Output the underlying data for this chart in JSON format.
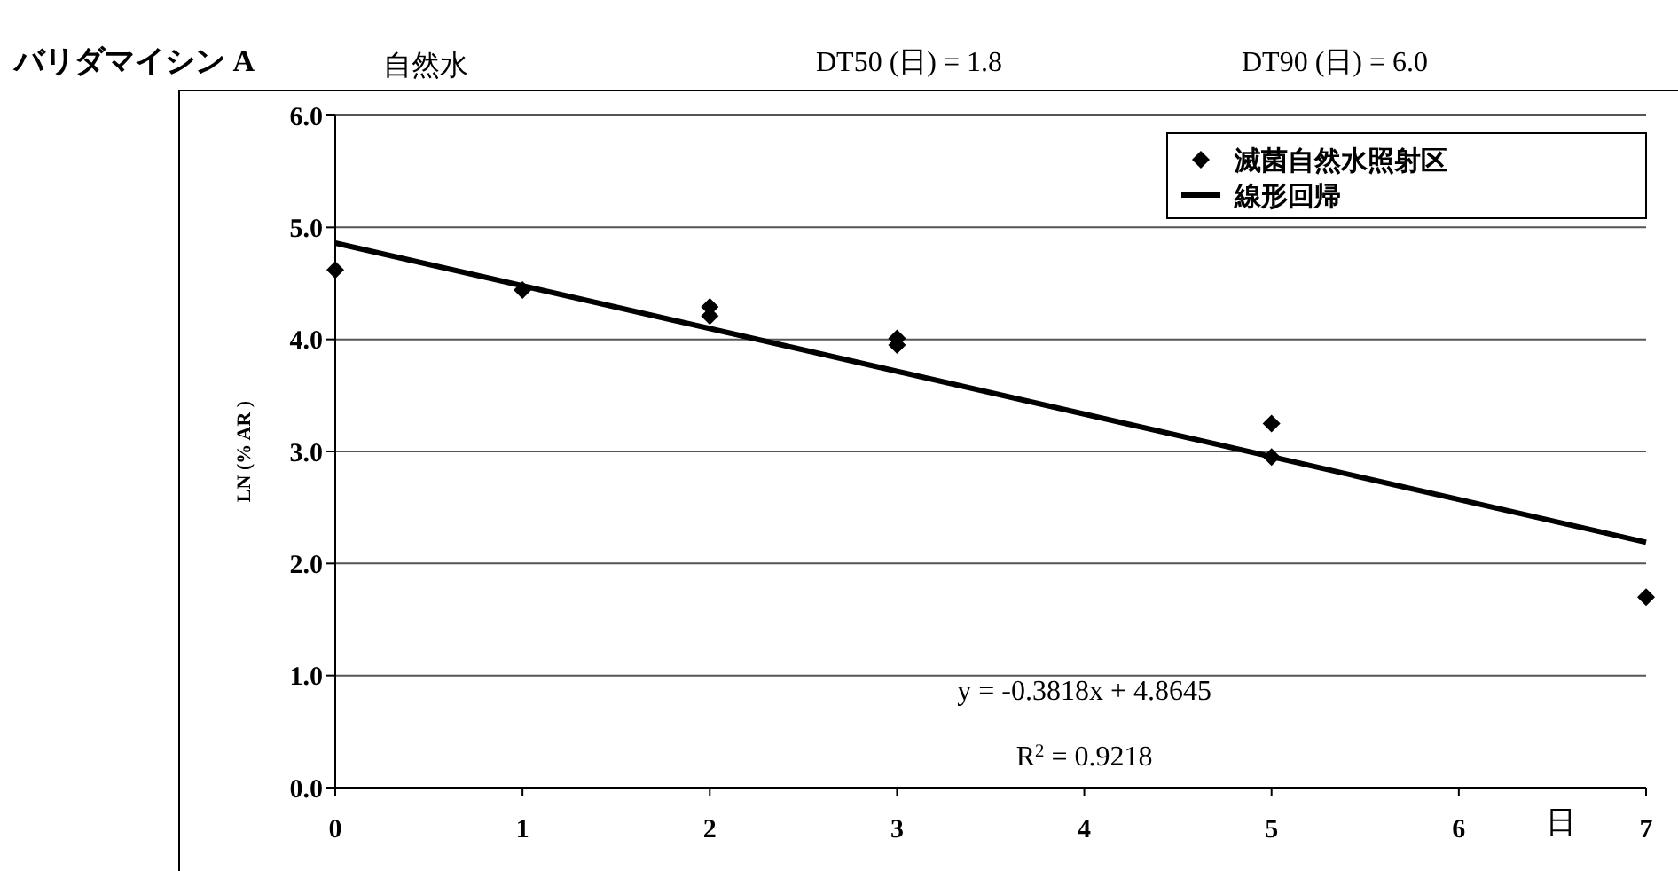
{
  "chart_data": {
    "type": "scatter",
    "title": "バリダマイシン A",
    "subtitle": "自然水",
    "xlabel": "日",
    "ylabel": "LN (% AR )",
    "annotations": [
      "DT50 (日) =   1.8",
      "DT90 (日) =   6.0",
      "y = -0.3818x + 4.8645",
      "R$^{2}$ = 0.9218"
    ],
    "series": [
      {
        "name": "滅菌自然水照射区",
        "color": "#000000",
        "marker": "diamond",
        "x": [
          0,
          1,
          2,
          2,
          3,
          3,
          5,
          5,
          7
        ],
        "values": [
          4.62,
          4.44,
          4.29,
          4.21,
          4.01,
          3.95,
          3.25,
          2.95,
          1.7
        ]
      },
      {
        "name": "線形回帰",
        "type": "line",
        "color": "#000000",
        "line_style": "solid",
        "x": [
          0,
          7
        ],
        "values": [
          4.86,
          2.19
        ]
      }
    ],
    "xlim": [
      0,
      7
    ],
    "xticks": [
      0,
      1,
      2,
      3,
      4,
      5,
      6,
      7
    ],
    "ylim": [
      0,
      6
    ],
    "yticks": [
      {
        "value": 0,
        "label": "0.0"
      },
      {
        "value": 1,
        "label": "1.0"
      },
      {
        "value": 2,
        "label": "2.0"
      },
      {
        "value": 3,
        "label": "3.0"
      },
      {
        "value": 4,
        "label": "4.0"
      },
      {
        "value": 5,
        "label": "5.0"
      },
      {
        "value": 6,
        "label": "6.0"
      }
    ],
    "grid": "y",
    "legend": "top right"
  }
}
